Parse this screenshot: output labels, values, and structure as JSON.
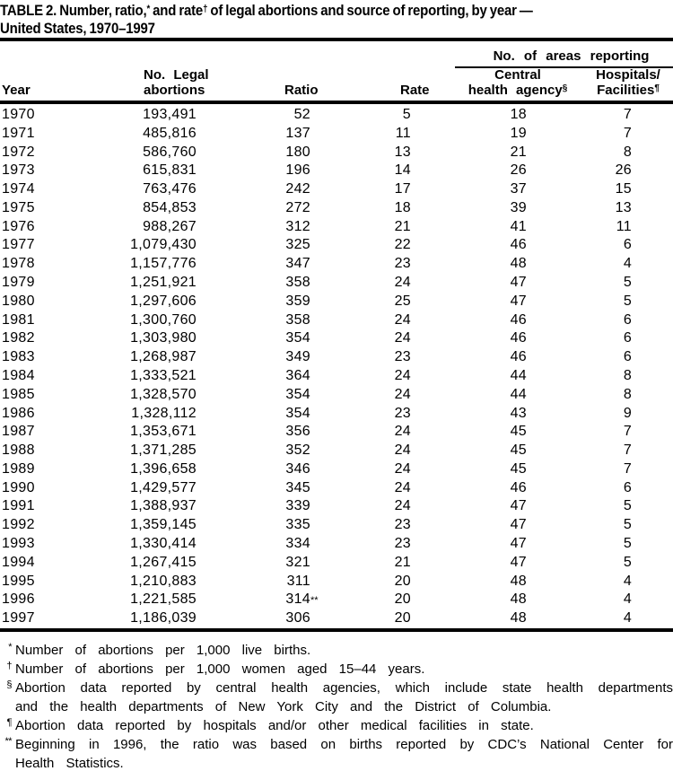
{
  "title": {
    "line1_pre": "TABLE 2. Number, ratio,",
    "line1_sup1": "*",
    "line1_mid": " and rate",
    "line1_sup2": "†",
    "line1_post": " of legal abortions and source of reporting, by year —",
    "line2": "United States, 1970–1997"
  },
  "table": {
    "spanner": "No. of areas reporting",
    "columns": {
      "year": "Year",
      "abortions_line1": "No. Legal",
      "abortions_line2": "abortions",
      "ratio": "Ratio",
      "rate": "Rate",
      "central_line1": "Central",
      "central_line2": "health agency",
      "central_marker": "§",
      "hospitals_line1": "Hospitals/",
      "hospitals_line2": "Facilities",
      "hospitals_marker": "¶"
    },
    "rows": [
      {
        "year": "1970",
        "abortions": "193,491",
        "ratio": "52",
        "ratio_marker": "",
        "rate": "5",
        "central": "18",
        "hospitals": "7"
      },
      {
        "year": "1971",
        "abortions": "485,816",
        "ratio": "137",
        "ratio_marker": "",
        "rate": "11",
        "central": "19",
        "hospitals": "7"
      },
      {
        "year": "1972",
        "abortions": "586,760",
        "ratio": "180",
        "ratio_marker": "",
        "rate": "13",
        "central": "21",
        "hospitals": "8"
      },
      {
        "year": "1973",
        "abortions": "615,831",
        "ratio": "196",
        "ratio_marker": "",
        "rate": "14",
        "central": "26",
        "hospitals": "26"
      },
      {
        "year": "1974",
        "abortions": "763,476",
        "ratio": "242",
        "ratio_marker": "",
        "rate": "17",
        "central": "37",
        "hospitals": "15"
      },
      {
        "year": "1975",
        "abortions": "854,853",
        "ratio": "272",
        "ratio_marker": "",
        "rate": "18",
        "central": "39",
        "hospitals": "13"
      },
      {
        "year": "1976",
        "abortions": "988,267",
        "ratio": "312",
        "ratio_marker": "",
        "rate": "21",
        "central": "41",
        "hospitals": "11"
      },
      {
        "year": "1977",
        "abortions": "1,079,430",
        "ratio": "325",
        "ratio_marker": "",
        "rate": "22",
        "central": "46",
        "hospitals": "6"
      },
      {
        "year": "1978",
        "abortions": "1,157,776",
        "ratio": "347",
        "ratio_marker": "",
        "rate": "23",
        "central": "48",
        "hospitals": "4"
      },
      {
        "year": "1979",
        "abortions": "1,251,921",
        "ratio": "358",
        "ratio_marker": "",
        "rate": "24",
        "central": "47",
        "hospitals": "5"
      },
      {
        "year": "1980",
        "abortions": "1,297,606",
        "ratio": "359",
        "ratio_marker": "",
        "rate": "25",
        "central": "47",
        "hospitals": "5"
      },
      {
        "year": "1981",
        "abortions": "1,300,760",
        "ratio": "358",
        "ratio_marker": "",
        "rate": "24",
        "central": "46",
        "hospitals": "6"
      },
      {
        "year": "1982",
        "abortions": "1,303,980",
        "ratio": "354",
        "ratio_marker": "",
        "rate": "24",
        "central": "46",
        "hospitals": "6"
      },
      {
        "year": "1983",
        "abortions": "1,268,987",
        "ratio": "349",
        "ratio_marker": "",
        "rate": "23",
        "central": "46",
        "hospitals": "6"
      },
      {
        "year": "1984",
        "abortions": "1,333,521",
        "ratio": "364",
        "ratio_marker": "",
        "rate": "24",
        "central": "44",
        "hospitals": "8"
      },
      {
        "year": "1985",
        "abortions": "1,328,570",
        "ratio": "354",
        "ratio_marker": "",
        "rate": "24",
        "central": "44",
        "hospitals": "8"
      },
      {
        "year": "1986",
        "abortions": "1,328,112",
        "ratio": "354",
        "ratio_marker": "",
        "rate": "23",
        "central": "43",
        "hospitals": "9"
      },
      {
        "year": "1987",
        "abortions": "1,353,671",
        "ratio": "356",
        "ratio_marker": "",
        "rate": "24",
        "central": "45",
        "hospitals": "7"
      },
      {
        "year": "1988",
        "abortions": "1,371,285",
        "ratio": "352",
        "ratio_marker": "",
        "rate": "24",
        "central": "45",
        "hospitals": "7"
      },
      {
        "year": "1989",
        "abortions": "1,396,658",
        "ratio": "346",
        "ratio_marker": "",
        "rate": "24",
        "central": "45",
        "hospitals": "7"
      },
      {
        "year": "1990",
        "abortions": "1,429,577",
        "ratio": "345",
        "ratio_marker": "",
        "rate": "24",
        "central": "46",
        "hospitals": "6"
      },
      {
        "year": "1991",
        "abortions": "1,388,937",
        "ratio": "339",
        "ratio_marker": "",
        "rate": "24",
        "central": "47",
        "hospitals": "5"
      },
      {
        "year": "1992",
        "abortions": "1,359,145",
        "ratio": "335",
        "ratio_marker": "",
        "rate": "23",
        "central": "47",
        "hospitals": "5"
      },
      {
        "year": "1993",
        "abortions": "1,330,414",
        "ratio": "334",
        "ratio_marker": "",
        "rate": "23",
        "central": "47",
        "hospitals": "5"
      },
      {
        "year": "1994",
        "abortions": "1,267,415",
        "ratio": "321",
        "ratio_marker": "",
        "rate": "21",
        "central": "47",
        "hospitals": "5"
      },
      {
        "year": "1995",
        "abortions": "1,210,883",
        "ratio": "311",
        "ratio_marker": "",
        "rate": "20",
        "central": "48",
        "hospitals": "4"
      },
      {
        "year": "1996",
        "abortions": "1,221,585",
        "ratio": "314",
        "ratio_marker": "**",
        "rate": "20",
        "central": "48",
        "hospitals": "4"
      },
      {
        "year": "1997",
        "abortions": "1,186,039",
        "ratio": "306",
        "ratio_marker": "",
        "rate": "20",
        "central": "48",
        "hospitals": "4"
      }
    ]
  },
  "footnotes": [
    {
      "marker": "*",
      "lines": [
        "Number of abortions per 1,000 live births."
      ]
    },
    {
      "marker": "†",
      "lines": [
        "Number of abortions per 1,000 women aged 15–44 years."
      ]
    },
    {
      "marker": "§",
      "lines": [
        "Abortion data reported by central health agencies, which include state health departments",
        "and the health departments of New York City and the District of Columbia."
      ]
    },
    {
      "marker": "¶",
      "lines": [
        "Abortion data reported by hospitals and/or other medical facilities in state."
      ]
    },
    {
      "marker": "**",
      "lines": [
        "Beginning in 1996, the ratio was based on births reported by CDC’s National Center for",
        "Health Statistics."
      ]
    }
  ]
}
